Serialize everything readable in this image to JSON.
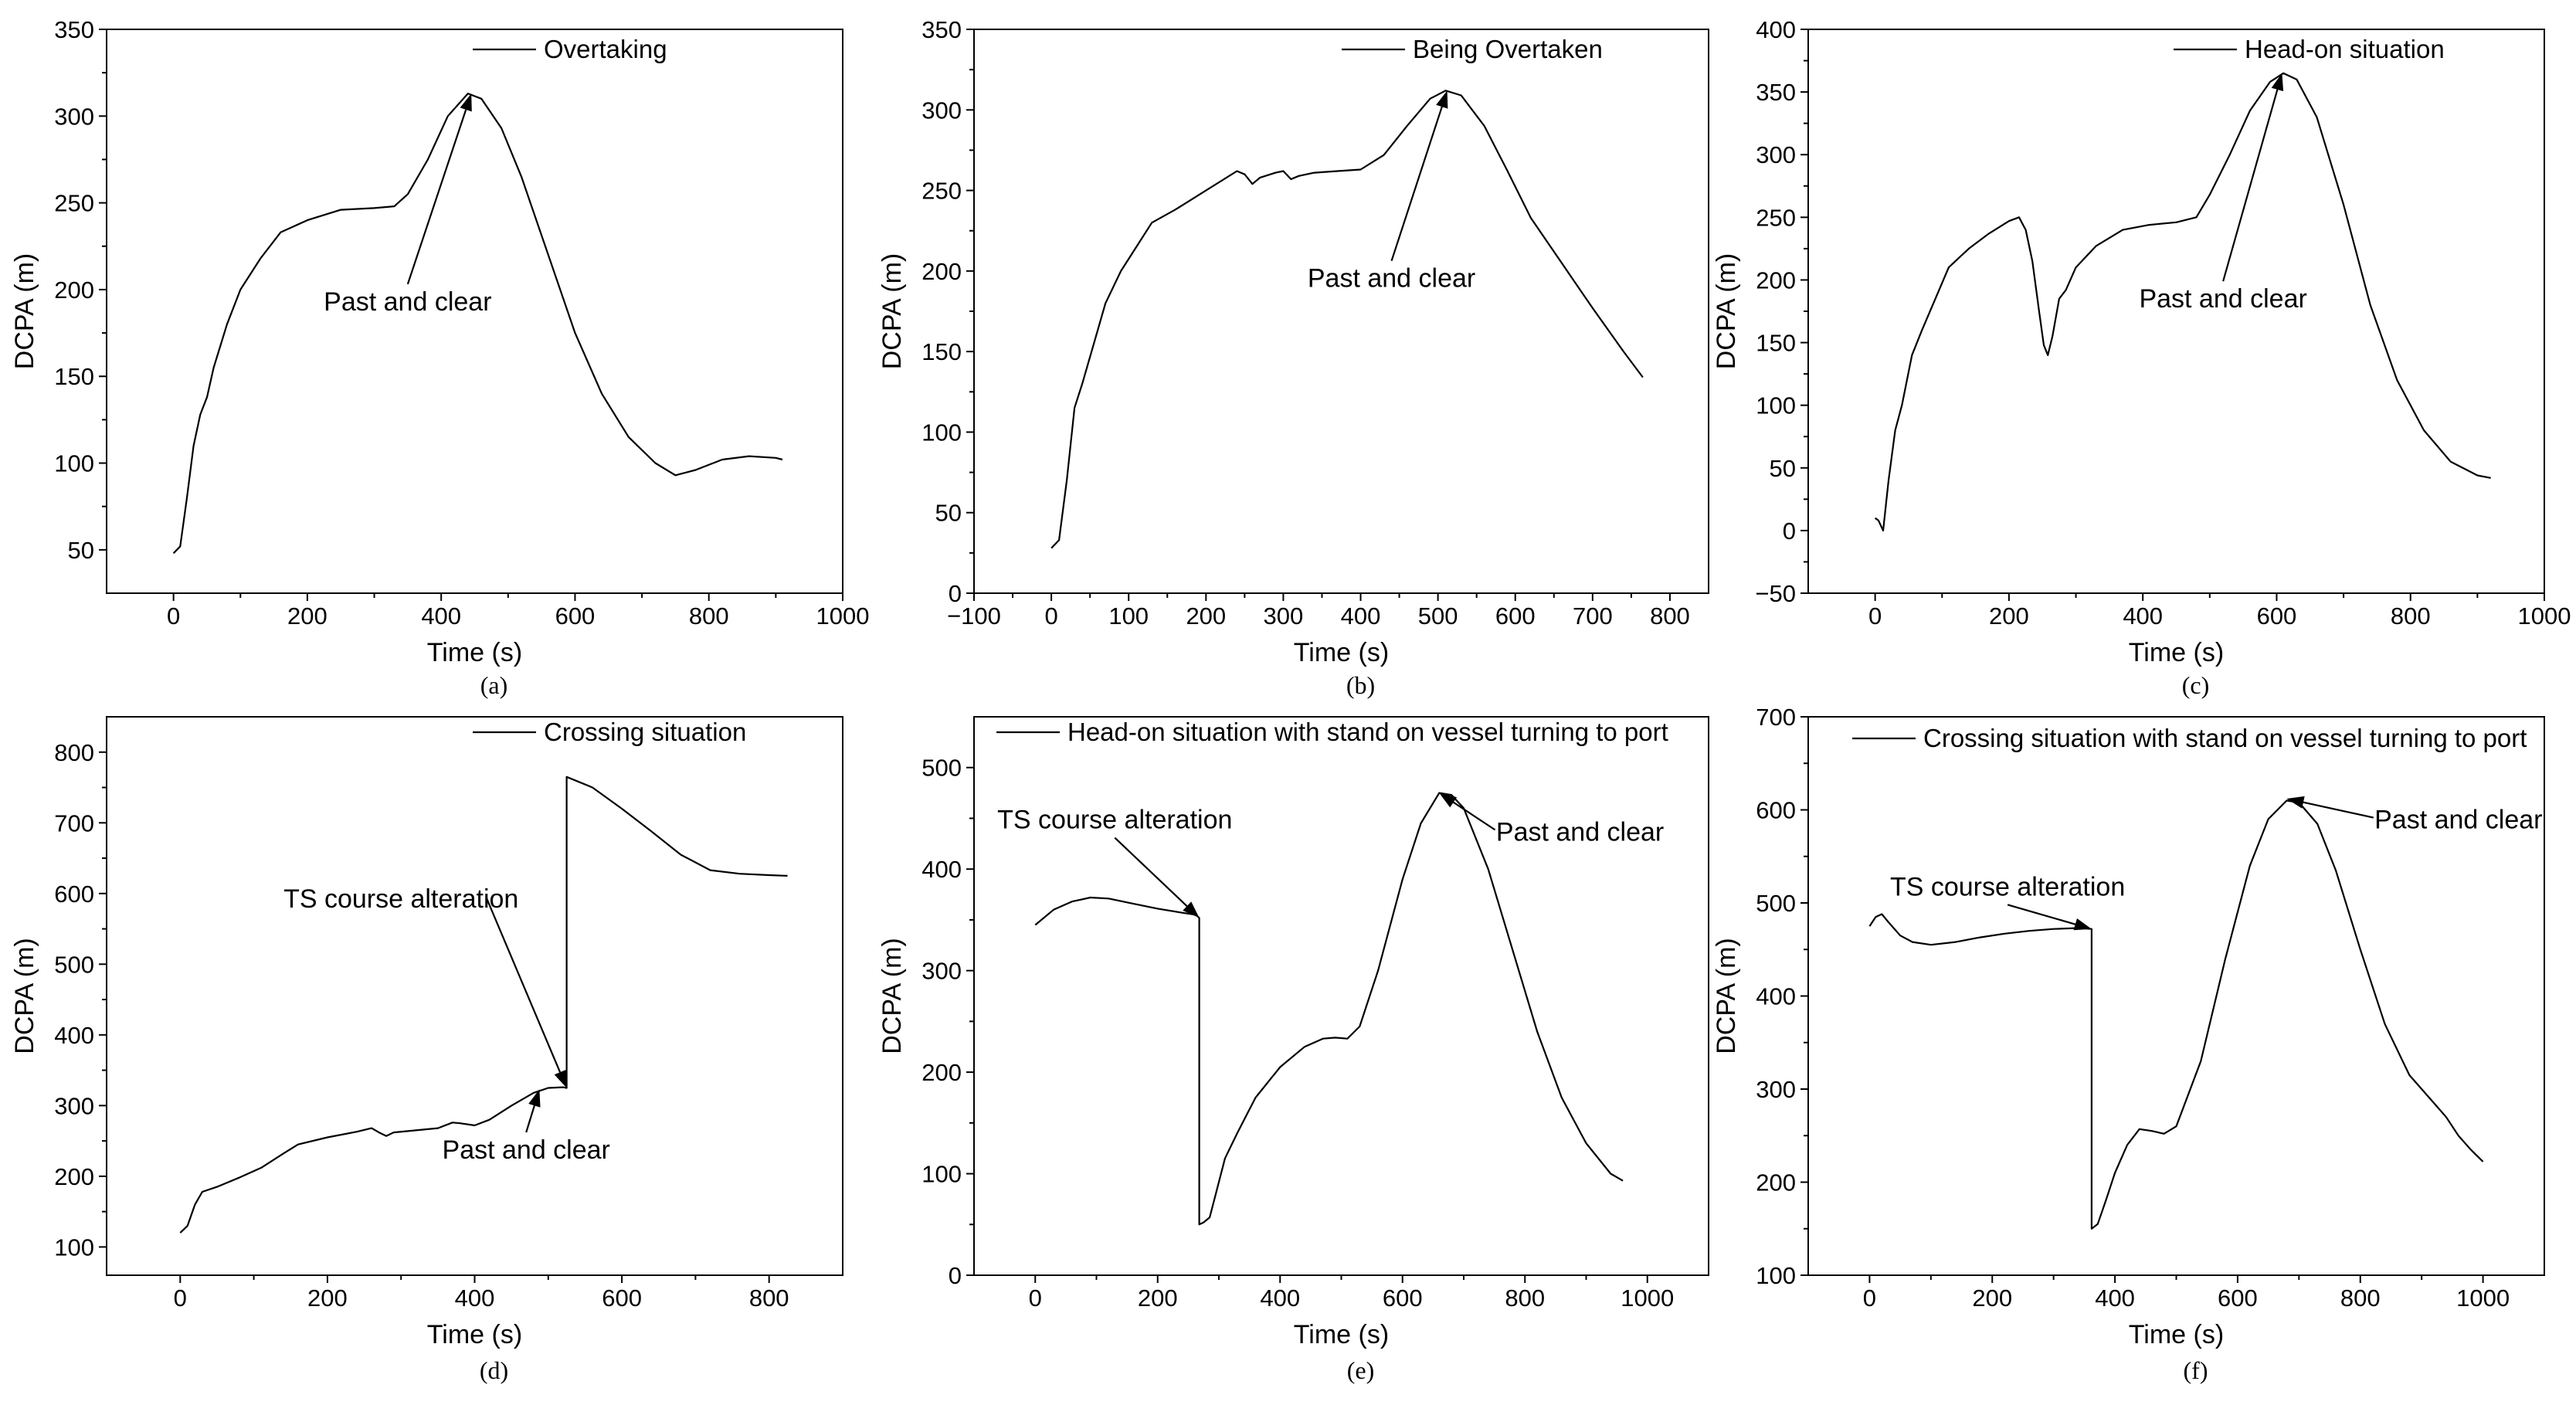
{
  "chart_data": [
    {
      "type": "line",
      "panel_label": "(a)",
      "xlabel": "Time (s)",
      "ylabel": "DCPA (m)",
      "xlim": [
        -100,
        1000
      ],
      "ylim": [
        25,
        350
      ],
      "xticks": [
        0,
        200,
        400,
        600,
        800,
        1000
      ],
      "yticks": [
        50,
        100,
        150,
        200,
        250,
        300,
        350
      ],
      "series": [
        {
          "name": "Overtaking",
          "x": [
            0,
            10,
            20,
            30,
            40,
            50,
            60,
            80,
            100,
            130,
            160,
            200,
            250,
            300,
            330,
            350,
            380,
            410,
            440,
            460,
            490,
            520,
            560,
            600,
            640,
            680,
            720,
            750,
            780,
            820,
            860,
            900,
            910
          ],
          "y": [
            48,
            52,
            80,
            110,
            128,
            138,
            155,
            180,
            200,
            218,
            233,
            240,
            246,
            247,
            248,
            255,
            275,
            300,
            313,
            310,
            293,
            265,
            220,
            175,
            140,
            115,
            100,
            93,
            96,
            102,
            104,
            103,
            102
          ]
        }
      ],
      "annotations": [
        {
          "text": "Past and clear",
          "x": 445,
          "y": 313,
          "text_x": 350,
          "text_y": 188
        }
      ]
    },
    {
      "type": "line",
      "panel_label": "(b)",
      "xlabel": "Time (s)",
      "ylabel": "DCPA (m)",
      "xlim": [
        -100,
        850
      ],
      "ylim": [
        0,
        350
      ],
      "xticks": [
        -100,
        0,
        100,
        200,
        300,
        400,
        500,
        600,
        700,
        800
      ],
      "xtick_labels": [
        "−100",
        "0",
        "100",
        "200",
        "300",
        "400",
        "500",
        "600",
        "700",
        "800"
      ],
      "yticks": [
        0,
        50,
        100,
        150,
        200,
        250,
        300,
        350
      ],
      "series": [
        {
          "name": "Being Overtaken",
          "x": [
            0,
            10,
            20,
            30,
            40,
            55,
            70,
            90,
            110,
            130,
            160,
            200,
            240,
            250,
            260,
            270,
            290,
            300,
            310,
            320,
            340,
            370,
            400,
            430,
            460,
            490,
            510,
            530,
            560,
            590,
            620,
            660,
            700,
            740,
            765
          ],
          "y": [
            28,
            33,
            70,
            115,
            130,
            155,
            180,
            200,
            215,
            230,
            238,
            250,
            262,
            260,
            254,
            258,
            261,
            262,
            257,
            259,
            261,
            262,
            263,
            272,
            290,
            307,
            312,
            309,
            290,
            262,
            233,
            205,
            177,
            150,
            134
          ]
        }
      ],
      "annotations": [
        {
          "text": "Past and clear",
          "x": 512,
          "y": 312,
          "text_x": 440,
          "text_y": 190
        }
      ]
    },
    {
      "type": "line",
      "panel_label": "(c)",
      "xlabel": "Time (s)",
      "ylabel": "DCPA (m)",
      "xlim": [
        -100,
        1000
      ],
      "ylim": [
        -50,
        400
      ],
      "xticks": [
        0,
        200,
        400,
        600,
        800,
        1000
      ],
      "yticks": [
        -50,
        0,
        50,
        100,
        150,
        200,
        250,
        300,
        350,
        400
      ],
      "ytick_labels": [
        "−50",
        "0",
        "50",
        "100",
        "150",
        "200",
        "250",
        "300",
        "350",
        "400"
      ],
      "series": [
        {
          "name": "Head-on situation",
          "x": [
            0,
            5,
            12,
            20,
            30,
            40,
            55,
            70,
            90,
            110,
            140,
            170,
            200,
            215,
            225,
            235,
            245,
            252,
            258,
            265,
            275,
            285,
            300,
            330,
            370,
            410,
            450,
            480,
            500,
            530,
            560,
            590,
            610,
            630,
            660,
            700,
            740,
            780,
            820,
            860,
            900,
            920
          ],
          "y": [
            10,
            8,
            0,
            40,
            80,
            100,
            140,
            160,
            185,
            210,
            225,
            237,
            247,
            250,
            240,
            215,
            175,
            148,
            140,
            155,
            185,
            192,
            210,
            227,
            240,
            244,
            246,
            250,
            268,
            300,
            335,
            358,
            365,
            360,
            330,
            260,
            180,
            120,
            80,
            55,
            44,
            42
          ]
        }
      ],
      "annotations": [
        {
          "text": "Past and clear",
          "x": 608,
          "y": 365,
          "text_x": 520,
          "text_y": 178
        }
      ]
    },
    {
      "type": "line",
      "panel_label": "(d)",
      "xlabel": "Time (s)",
      "ylabel": "DCPA (m)",
      "xlim": [
        -100,
        900
      ],
      "ylim": [
        60,
        850
      ],
      "xticks": [
        0,
        200,
        400,
        600,
        800
      ],
      "yticks": [
        100,
        200,
        300,
        400,
        500,
        600,
        700,
        800
      ],
      "series": [
        {
          "name": "Crossing situation",
          "x": [
            0,
            10,
            20,
            30,
            50,
            80,
            110,
            140,
            160,
            200,
            240,
            260,
            270,
            280,
            290,
            320,
            350,
            370,
            380,
            400,
            420,
            450,
            480,
            500,
            520,
            525,
            525,
            560,
            600,
            640,
            680,
            720,
            760,
            800,
            825
          ],
          "y": [
            120,
            130,
            160,
            178,
            185,
            198,
            212,
            232,
            245,
            255,
            263,
            268,
            262,
            257,
            262,
            265,
            268,
            276,
            275,
            272,
            280,
            300,
            318,
            325,
            326,
            325,
            765,
            750,
            720,
            688,
            655,
            633,
            628,
            626,
            625
          ]
        }
      ],
      "annotations": [
        {
          "text": "TS course alteration",
          "x": 525,
          "y": 325,
          "text_x": 300,
          "text_y": 580
        },
        {
          "text": "Past and clear",
          "x": 488,
          "y": 323,
          "text_x": 470,
          "text_y": 225
        }
      ]
    },
    {
      "type": "line",
      "panel_label": "(e)",
      "xlabel": "Time (s)",
      "ylabel": "DCPA (m)",
      "xlim": [
        -100,
        1100
      ],
      "ylim": [
        0,
        550
      ],
      "xticks": [
        0,
        200,
        400,
        600,
        800,
        1000
      ],
      "yticks": [
        0,
        100,
        200,
        300,
        400,
        500
      ],
      "series": [
        {
          "name": "Head-on situation with stand on vessel turning to port",
          "x": [
            0,
            30,
            60,
            90,
            120,
            160,
            200,
            240,
            262,
            268,
            268,
            275,
            285,
            295,
            310,
            330,
            360,
            400,
            440,
            470,
            490,
            510,
            530,
            560,
            600,
            630,
            660,
            680,
            700,
            740,
            780,
            820,
            860,
            900,
            940,
            960
          ],
          "y": [
            345,
            360,
            368,
            372,
            371,
            366,
            361,
            357,
            355,
            352,
            50,
            52,
            57,
            80,
            115,
            140,
            175,
            205,
            225,
            233,
            234,
            233,
            245,
            300,
            390,
            445,
            475,
            473,
            460,
            400,
            320,
            240,
            175,
            130,
            100,
            93
          ]
        }
      ],
      "annotations": [
        {
          "text": "TS course alteration",
          "x": 268,
          "y": 352,
          "text_x": 130,
          "text_y": 440
        },
        {
          "text": "Past and clear",
          "x": 660,
          "y": 475,
          "text_x": 890,
          "text_y": 428
        }
      ]
    },
    {
      "type": "line",
      "panel_label": "(f)",
      "xlabel": "Time (s)",
      "ylabel": "DCPA (m)",
      "xlim": [
        -100,
        1100
      ],
      "ylim": [
        100,
        700
      ],
      "xticks": [
        0,
        200,
        400,
        600,
        800,
        1000
      ],
      "yticks": [
        100,
        200,
        300,
        400,
        500,
        600,
        700
      ],
      "series": [
        {
          "name": "Crossing situation with stand on vessel turning to port",
          "x": [
            0,
            10,
            20,
            30,
            50,
            70,
            100,
            140,
            180,
            220,
            260,
            300,
            340,
            362,
            362,
            372,
            385,
            400,
            420,
            440,
            460,
            480,
            500,
            540,
            580,
            620,
            650,
            680,
            700,
            730,
            760,
            800,
            840,
            880,
            920,
            940,
            960,
            980,
            1000
          ],
          "y": [
            475,
            485,
            488,
            480,
            465,
            458,
            455,
            458,
            463,
            467,
            470,
            472,
            473,
            472,
            150,
            155,
            180,
            210,
            240,
            257,
            255,
            252,
            260,
            330,
            440,
            540,
            590,
            610,
            608,
            585,
            535,
            450,
            370,
            315,
            285,
            270,
            250,
            235,
            222
          ]
        }
      ],
      "annotations": [
        {
          "text": "TS course alteration",
          "x": 362,
          "y": 472,
          "text_x": 225,
          "text_y": 508
        },
        {
          "text": "Past and clear",
          "x": 680,
          "y": 612,
          "text_x": 960,
          "text_y": 580
        }
      ]
    }
  ]
}
